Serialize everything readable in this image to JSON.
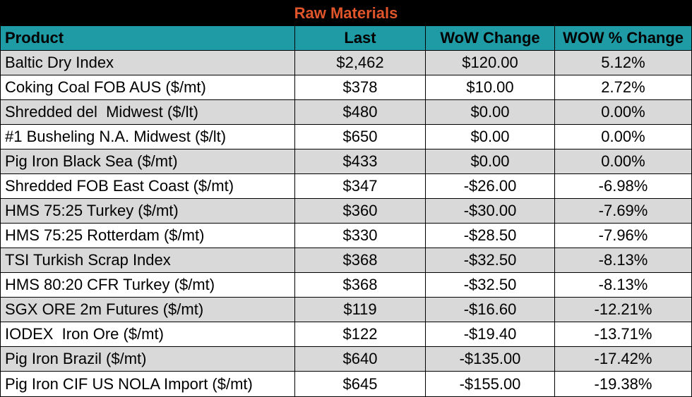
{
  "title": "Raw Materials",
  "colors": {
    "title_background": "#000000",
    "title_text": "#e0552a",
    "header_background": "#1f9ba6",
    "stripe": "#d9d9d9"
  },
  "headers": {
    "product": "Product",
    "last": "Last",
    "wow_change": "WoW Change",
    "wow_pct_change": "WOW % Change"
  },
  "rows": [
    {
      "product": "Baltic Dry Index",
      "last": "$2,462",
      "wow_change": "$120.00",
      "wow_pct": "5.12%"
    },
    {
      "product": "Coking Coal FOB AUS ($/mt)",
      "last": "$378",
      "wow_change": "$10.00",
      "wow_pct": "2.72%"
    },
    {
      "product": "Shredded del  Midwest ($/lt)",
      "last": "$480",
      "wow_change": "$0.00",
      "wow_pct": "0.00%"
    },
    {
      "product": "#1 Busheling N.A. Midwest ($/lt)",
      "last": "$650",
      "wow_change": "$0.00",
      "wow_pct": "0.00%"
    },
    {
      "product": "Pig Iron Black Sea ($/mt)",
      "last": "$433",
      "wow_change": "$0.00",
      "wow_pct": "0.00%"
    },
    {
      "product": "Shredded FOB East Coast ($/mt)",
      "last": "$347",
      "wow_change": "-$26.00",
      "wow_pct": "-6.98%"
    },
    {
      "product": "HMS 75:25 Turkey ($/mt)",
      "last": "$360",
      "wow_change": "-$30.00",
      "wow_pct": "-7.69%"
    },
    {
      "product": "HMS 75:25 Rotterdam ($/mt)",
      "last": "$330",
      "wow_change": "-$28.50",
      "wow_pct": "-7.96%"
    },
    {
      "product": "TSI Turkish Scrap Index",
      "last": "$368",
      "wow_change": "-$32.50",
      "wow_pct": "-8.13%"
    },
    {
      "product": "HMS 80:20 CFR Turkey ($/mt)",
      "last": "$368",
      "wow_change": "-$32.50",
      "wow_pct": "-8.13%"
    },
    {
      "product": "SGX ORE 2m Futures ($/mt)",
      "last": "$119",
      "wow_change": "-$16.60",
      "wow_pct": "-12.21%"
    },
    {
      "product": "IODEX  Iron Ore ($/mt)",
      "last": "$122",
      "wow_change": "-$19.40",
      "wow_pct": "-13.71%"
    },
    {
      "product": "Pig Iron Brazil ($/mt)",
      "last": "$640",
      "wow_change": "-$135.00",
      "wow_pct": "-17.42%"
    },
    {
      "product": "Pig Iron CIF US NOLA Import ($/mt)",
      "last": "$645",
      "wow_change": "-$155.00",
      "wow_pct": "-19.38%"
    }
  ]
}
